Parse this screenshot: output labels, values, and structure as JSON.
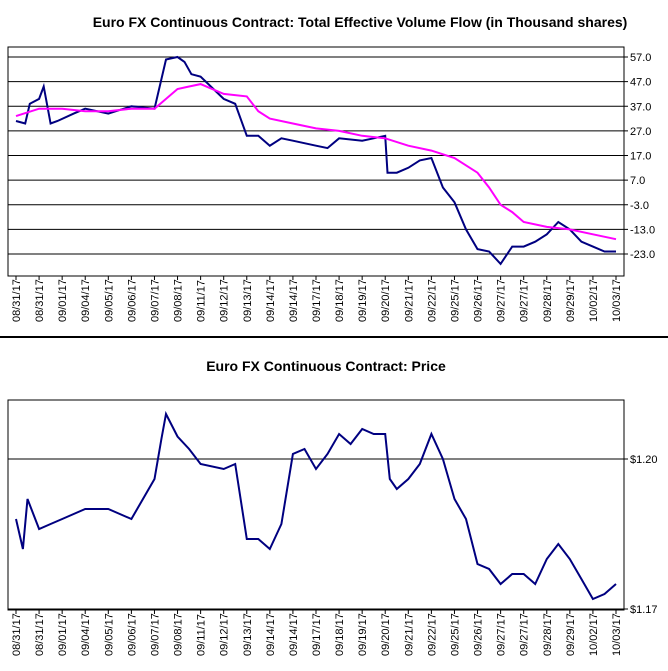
{
  "chart_data": [
    {
      "type": "line",
      "title": "Euro FX Continuous Contract: Total Effective Volume Flow (in Thousand shares)",
      "ylim": [
        -33.0,
        61.0
      ],
      "y_ticks": [
        "57.0",
        "47.0",
        "37.0",
        "27.0",
        "17.0",
        "7.0",
        "-3.0",
        "-13.0",
        "-23.0"
      ],
      "x_labels": [
        "08/31/17",
        "08/31/17",
        "09/01/17",
        "09/04/17",
        "09/05/17",
        "09/06/17",
        "09/07/17",
        "09/08/17",
        "09/11/17",
        "09/12/17",
        "09/13/17",
        "09/14/17",
        "09/14/17",
        "09/17/17",
        "09/18/17",
        "09/19/17",
        "09/20/17",
        "09/21/17",
        "09/22/17",
        "09/25/17",
        "09/26/17",
        "09/27/17",
        "09/27/17",
        "09/28/17",
        "09/29/17",
        "10/02/17",
        "10/03/17"
      ],
      "grid": true,
      "series": [
        {
          "color": "#000080",
          "points": [
            [
              0,
              31
            ],
            [
              0.4,
              30
            ],
            [
              0.6,
              38
            ],
            [
              1,
              40
            ],
            [
              1.2,
              45
            ],
            [
              1.5,
              30
            ],
            [
              1.8,
              31
            ],
            [
              2.5,
              34
            ],
            [
              3,
              36
            ],
            [
              4,
              34
            ],
            [
              5,
              37
            ],
            [
              6,
              36
            ],
            [
              6.5,
              56
            ],
            [
              7,
              57
            ],
            [
              7.3,
              55
            ],
            [
              7.6,
              50
            ],
            [
              8,
              49
            ],
            [
              9,
              40
            ],
            [
              9.5,
              38
            ],
            [
              10,
              25
            ],
            [
              10.5,
              25
            ],
            [
              11,
              21
            ],
            [
              11.5,
              24
            ],
            [
              12,
              23
            ],
            [
              13,
              21
            ],
            [
              13.5,
              20
            ],
            [
              14,
              24
            ],
            [
              15,
              23
            ],
            [
              15.5,
              24
            ],
            [
              16,
              25
            ],
            [
              16.1,
              10
            ],
            [
              16.5,
              10
            ],
            [
              17,
              12
            ],
            [
              17.5,
              15
            ],
            [
              18,
              16
            ],
            [
              18.5,
              4
            ],
            [
              19,
              -2
            ],
            [
              19.5,
              -13
            ],
            [
              20,
              -21
            ],
            [
              20.5,
              -22
            ],
            [
              21,
              -27
            ],
            [
              21.5,
              -20
            ],
            [
              22,
              -20
            ],
            [
              22.5,
              -18
            ],
            [
              23,
              -15
            ],
            [
              23.5,
              -10
            ],
            [
              24,
              -13
            ],
            [
              24.5,
              -18
            ],
            [
              25,
              -20
            ],
            [
              25.5,
              -22
            ],
            [
              26,
              -22
            ]
          ]
        },
        {
          "color": "#ff00ff",
          "points": [
            [
              0,
              33
            ],
            [
              1,
              36
            ],
            [
              2,
              36
            ],
            [
              3,
              35
            ],
            [
              4,
              35
            ],
            [
              5,
              36
            ],
            [
              6,
              36
            ],
            [
              7,
              44
            ],
            [
              7.5,
              45
            ],
            [
              8,
              46
            ],
            [
              9,
              42
            ],
            [
              10,
              41
            ],
            [
              10.5,
              35
            ],
            [
              11,
              32
            ],
            [
              12,
              30
            ],
            [
              13,
              28
            ],
            [
              14,
              27
            ],
            [
              15,
              25
            ],
            [
              16,
              24
            ],
            [
              17,
              21
            ],
            [
              18,
              19
            ],
            [
              19,
              16
            ],
            [
              20,
              10
            ],
            [
              20.5,
              4
            ],
            [
              21,
              -3
            ],
            [
              21.5,
              -6
            ],
            [
              22,
              -10
            ],
            [
              23,
              -12
            ],
            [
              24,
              -13
            ],
            [
              25,
              -15
            ],
            [
              26,
              -17
            ]
          ]
        }
      ]
    },
    {
      "type": "line",
      "title": "Euro FX Continuous Contract: Price",
      "y_ticks": [
        "$1.20",
        "$1.17"
      ],
      "x_labels": [
        "08/31/17",
        "08/31/17",
        "09/01/17",
        "09/04/17",
        "09/05/17",
        "09/06/17",
        "09/07/17",
        "09/08/17",
        "09/11/17",
        "09/12/17",
        "09/13/17",
        "09/14/17",
        "09/14/17",
        "09/17/17",
        "09/18/17",
        "09/19/17",
        "09/20/17",
        "09/21/17",
        "09/22/17",
        "09/25/17",
        "09/26/17",
        "09/27/17",
        "09/27/17",
        "09/28/17",
        "09/29/17",
        "10/02/17",
        "10/03/17"
      ],
      "grid": true,
      "series": [
        {
          "color": "#000080",
          "points": [
            [
              0,
              1.188
            ],
            [
              0.3,
              1.182
            ],
            [
              0.5,
              1.192
            ],
            [
              1,
              1.186
            ],
            [
              1.5,
              1.187
            ],
            [
              2,
              1.188
            ],
            [
              3,
              1.19
            ],
            [
              4,
              1.19
            ],
            [
              5,
              1.188
            ],
            [
              6,
              1.196
            ],
            [
              6.3,
              1.204
            ],
            [
              6.5,
              1.209
            ],
            [
              7,
              1.2045
            ],
            [
              7.5,
              1.202
            ],
            [
              8,
              1.199
            ],
            [
              9,
              1.198
            ],
            [
              9.5,
              1.199
            ],
            [
              10,
              1.184
            ],
            [
              10.5,
              1.184
            ],
            [
              11,
              1.182
            ],
            [
              11.5,
              1.187
            ],
            [
              12,
              1.201
            ],
            [
              12.5,
              1.202
            ],
            [
              13,
              1.198
            ],
            [
              13.5,
              1.201
            ],
            [
              14,
              1.205
            ],
            [
              14.5,
              1.203
            ],
            [
              15,
              1.206
            ],
            [
              15.5,
              1.205
            ],
            [
              16,
              1.205
            ],
            [
              16.2,
              1.196
            ],
            [
              16.5,
              1.194
            ],
            [
              17,
              1.196
            ],
            [
              17.5,
              1.199
            ],
            [
              18,
              1.205
            ],
            [
              18.5,
              1.2
            ],
            [
              19,
              1.192
            ],
            [
              19.5,
              1.188
            ],
            [
              20,
              1.179
            ],
            [
              20.5,
              1.178
            ],
            [
              21,
              1.175
            ],
            [
              21.5,
              1.177
            ],
            [
              22,
              1.177
            ],
            [
              22.5,
              1.175
            ],
            [
              23,
              1.18
            ],
            [
              23.5,
              1.183
            ],
            [
              24,
              1.18
            ],
            [
              24.5,
              1.176
            ],
            [
              25,
              1.172
            ],
            [
              25.5,
              1.173
            ],
            [
              26,
              1.175
            ]
          ]
        }
      ]
    }
  ]
}
